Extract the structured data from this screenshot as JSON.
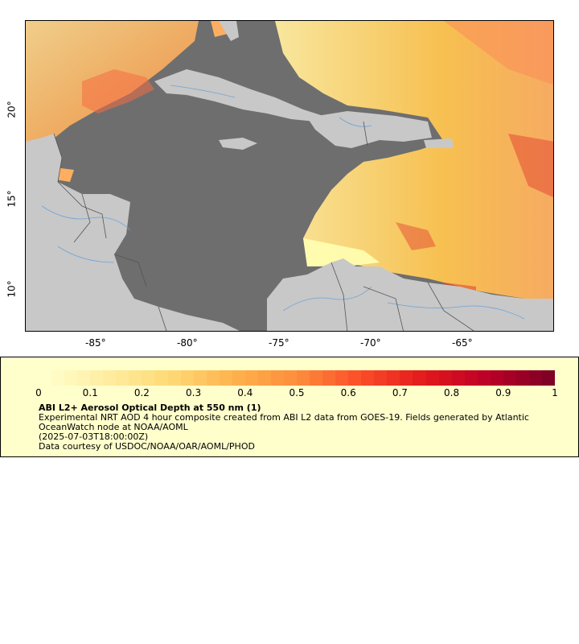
{
  "map": {
    "lon_labels": [
      "-85°",
      "-80°",
      "-75°",
      "-70°",
      "-65°"
    ],
    "lat_labels": [
      "20°",
      "15°",
      "10°"
    ],
    "colors": {
      "ocean_nodata": "#6e6e6e",
      "land": "#c8c8c8",
      "rivers": "#6fa3d6",
      "borders": "#555555"
    }
  },
  "colorbar": {
    "labels": [
      "0",
      "0.1",
      "0.2",
      "0.3",
      "0.4",
      "0.5",
      "0.6",
      "0.7",
      "0.8",
      "0.9",
      "1"
    ],
    "range": [
      0,
      1
    ],
    "colormap": "YlOrRd"
  },
  "legend": {
    "title": "ABI L2+ Aerosol Optical Depth at 550 nm (1)",
    "description": "Experimental NRT AOD 4 hour composite created from ABI L2 data from GOES-19. Fields generated by Atlantic OceanWatch node at NOAA/AOML",
    "timestamp": "(2025-07-03T18:00:00Z)",
    "credit": "Data courtesy of USDOC/NOAA/OAR/AOML/PHOD"
  }
}
